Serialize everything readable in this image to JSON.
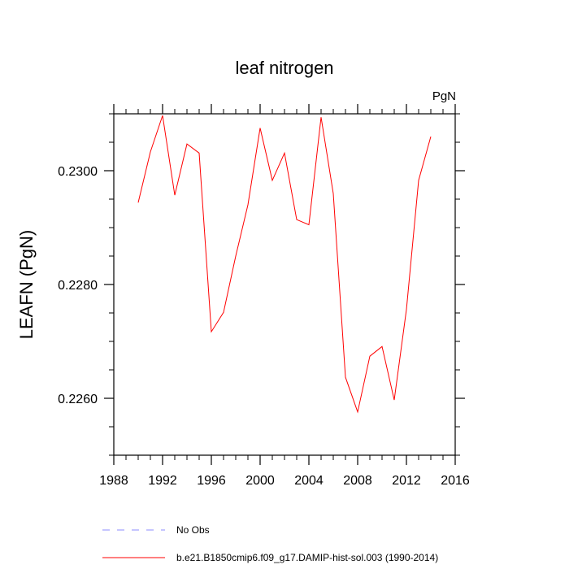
{
  "chart_data": {
    "type": "line",
    "title": "leaf nitrogen",
    "units_label": "PgN",
    "ylabel": "LEAFN  (PgN)",
    "xlabel": "",
    "xlim": [
      1988,
      2016
    ],
    "ylim": [
      0.225,
      0.231
    ],
    "x_ticks": [
      1988,
      1992,
      1996,
      2000,
      2004,
      2008,
      2012,
      2016
    ],
    "y_ticks": [
      0.226,
      0.228,
      0.23
    ],
    "y_tick_labels": [
      "0.2260",
      "0.2280",
      "0.2300"
    ],
    "grid": false,
    "legend_position": "bottom-left",
    "series": [
      {
        "name": "b.e21.B1850cmip6.f09_g17.DAMIP-hist-sol.003 (1990-2014)",
        "color": "#ff0000",
        "style": "solid",
        "x": [
          1990,
          1991,
          1992,
          1993,
          1994,
          1995,
          1996,
          1997,
          1998,
          1999,
          2000,
          2001,
          2002,
          2003,
          2004,
          2005,
          2006,
          2007,
          2008,
          2009,
          2010,
          2011,
          2012,
          2013,
          2014
        ],
        "y": [
          0.22944,
          0.23033,
          0.23097,
          0.22957,
          0.23047,
          0.23031,
          0.22717,
          0.22751,
          0.2285,
          0.2294,
          0.23075,
          0.22983,
          0.23031,
          0.22914,
          0.22905,
          0.23094,
          0.2296,
          0.22637,
          0.22576,
          0.22674,
          0.22691,
          0.22597,
          0.22756,
          0.22983,
          0.2306
        ]
      }
    ],
    "legend": [
      {
        "label": "No Obs",
        "color": "#8c8cff",
        "style": "dashed"
      },
      {
        "label": "b.e21.B1850cmip6.f09_g17.DAMIP-hist-sol.003 (1990-2014)",
        "color": "#ff0000",
        "style": "solid"
      }
    ]
  }
}
